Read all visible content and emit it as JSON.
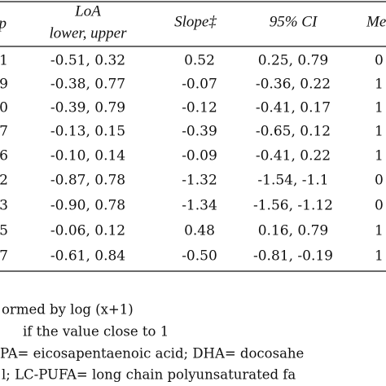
{
  "table": {
    "header": {
      "c0": "p",
      "c1": [
        "LoA",
        "lower, upper"
      ],
      "c2": "Slope‡",
      "c3": "95% CI",
      "c4": "Me"
    },
    "rows": [
      [
        "1",
        "-0.51, 0.32",
        "0.52",
        "0.25, 0.79",
        "0"
      ],
      [
        "9",
        "-0.38, 0.77",
        "-0.07",
        "-0.36, 0.22",
        "1"
      ],
      [
        "0",
        "-0.39, 0.79",
        "-0.12",
        "-0.41, 0.17",
        "1"
      ],
      [
        "7",
        "-0.13, 0.15",
        "-0.39",
        "-0.65, 0.12",
        "1"
      ],
      [
        "6",
        "-0.10, 0.14",
        "-0.09",
        "-0.41, 0.22",
        "1"
      ],
      [
        "2",
        "-0.87, 0.78",
        "-1.32",
        "-1.54, -1.1",
        "0"
      ],
      [
        "3",
        "-0.90, 0.78",
        "-1.34",
        "-1.56, -1.12",
        "0"
      ],
      [
        "5",
        "-0.06, 0.12",
        "0.48",
        "0.16, 0.79",
        "1"
      ],
      [
        "7",
        "-0.61, 0.84",
        "-0.50",
        "-0.81, -0.19",
        "1"
      ]
    ]
  },
  "footnotes": [
    "ormed by log (x+1)",
    "if the value close to 1",
    "PA= eicosapentaenoic acid; DHA= docosahe",
    "l; LC-PUFA= long chain polyunsaturated fa"
  ]
}
